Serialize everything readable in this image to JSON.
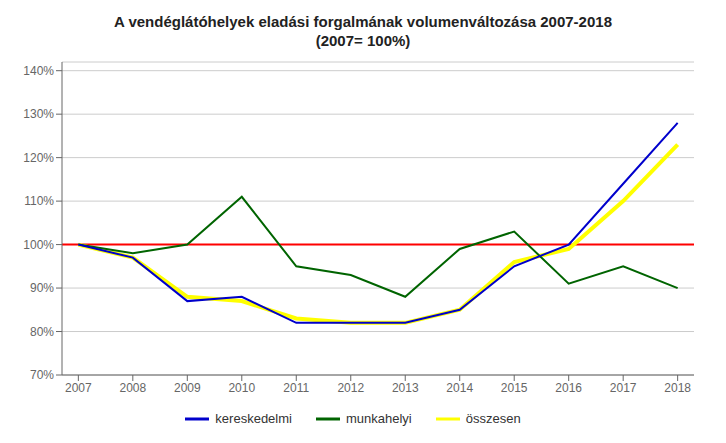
{
  "chart_data": {
    "type": "line",
    "title": "A vendéglátóhelyek eladási forgalmának volumenváltozása 2007-2018",
    "subtitle": "(2007= 100%)",
    "x": [
      2007,
      2008,
      2009,
      2010,
      2011,
      2012,
      2013,
      2014,
      2015,
      2016,
      2017,
      2018
    ],
    "series": [
      {
        "name": "kereskedelmi",
        "color": "#0000cc",
        "values": [
          100,
          97,
          87,
          88,
          82,
          82,
          82,
          85,
          95,
          100,
          114,
          128
        ]
      },
      {
        "name": "munkahelyi",
        "color": "#006400",
        "values": [
          100,
          98,
          100,
          111,
          95,
          93,
          88,
          99,
          103,
          91,
          95,
          90
        ]
      },
      {
        "name": "összesen",
        "color": "#ffff00",
        "values": [
          100,
          97,
          88,
          87,
          83,
          82,
          82,
          85,
          96,
          99,
          110,
          123
        ]
      }
    ],
    "xlim": [
      2006.7,
      2018.3
    ],
    "xticks": [
      2007,
      2008,
      2009,
      2010,
      2011,
      2012,
      2013,
      2014,
      2015,
      2016,
      2017,
      2018
    ],
    "ylim": [
      70,
      142
    ],
    "yticks": [
      {
        "value": 70,
        "label": "70%"
      },
      {
        "value": 80,
        "label": "80%"
      },
      {
        "value": 90,
        "label": "90%"
      },
      {
        "value": 100,
        "label": "100%"
      },
      {
        "value": 110,
        "label": "110%"
      },
      {
        "value": 120,
        "label": "120%"
      },
      {
        "value": 130,
        "label": "130%"
      },
      {
        "value": 140,
        "label": "140%"
      }
    ],
    "reference_line": {
      "y": 100,
      "color": "#ff0000"
    },
    "grid": true,
    "legend": "bottom"
  }
}
